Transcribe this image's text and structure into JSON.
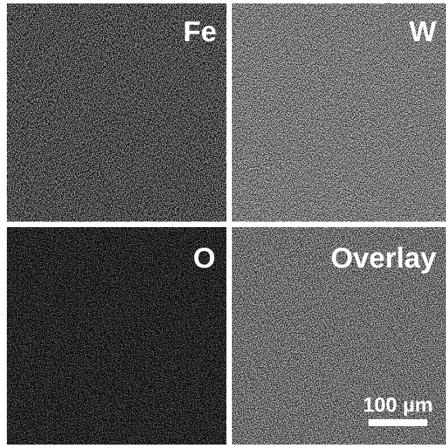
{
  "panels": [
    {
      "label": "Fe"
    },
    {
      "label": "W"
    },
    {
      "label": "O"
    },
    {
      "label": "Overlay"
    }
  ],
  "scale_bar": {
    "label": "100 µm"
  }
}
